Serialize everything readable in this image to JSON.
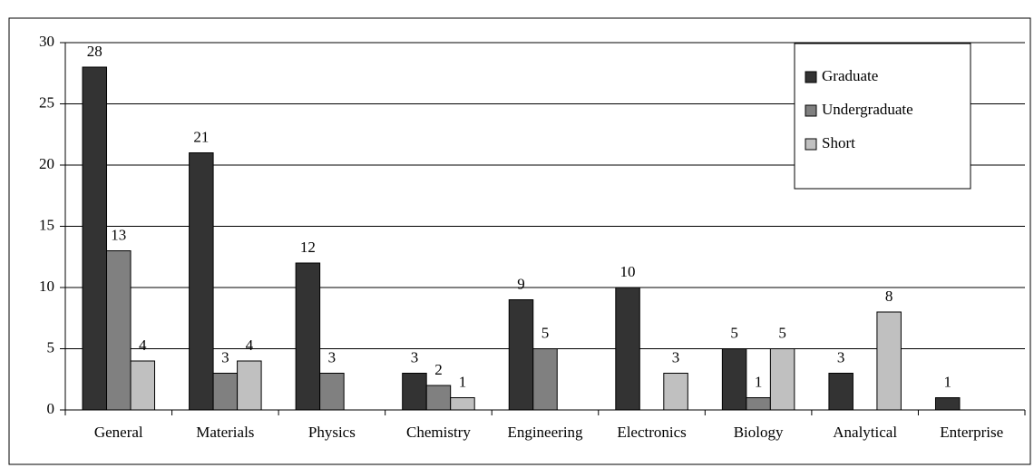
{
  "chart_data": {
    "type": "bar",
    "categories": [
      "General",
      "Materials",
      "Physics",
      "Chemistry",
      "Engineering",
      "Electronics",
      "Biology",
      "Analytical",
      "Enterprise"
    ],
    "series": [
      {
        "name": "Graduate",
        "color": "#333333",
        "values": [
          28,
          21,
          12,
          3,
          9,
          10,
          5,
          3,
          1
        ]
      },
      {
        "name": "Undergraduate",
        "color": "#808080",
        "values": [
          13,
          3,
          3,
          2,
          5,
          null,
          1,
          null,
          null
        ]
      },
      {
        "name": "Short",
        "color": "#c0c0c0",
        "values": [
          4,
          4,
          null,
          1,
          null,
          3,
          5,
          8,
          null
        ]
      }
    ],
    "ylim": [
      0,
      30
    ],
    "yticks": [
      0,
      5,
      10,
      15,
      20,
      25,
      30
    ],
    "grid": true,
    "legend": "top-right"
  }
}
